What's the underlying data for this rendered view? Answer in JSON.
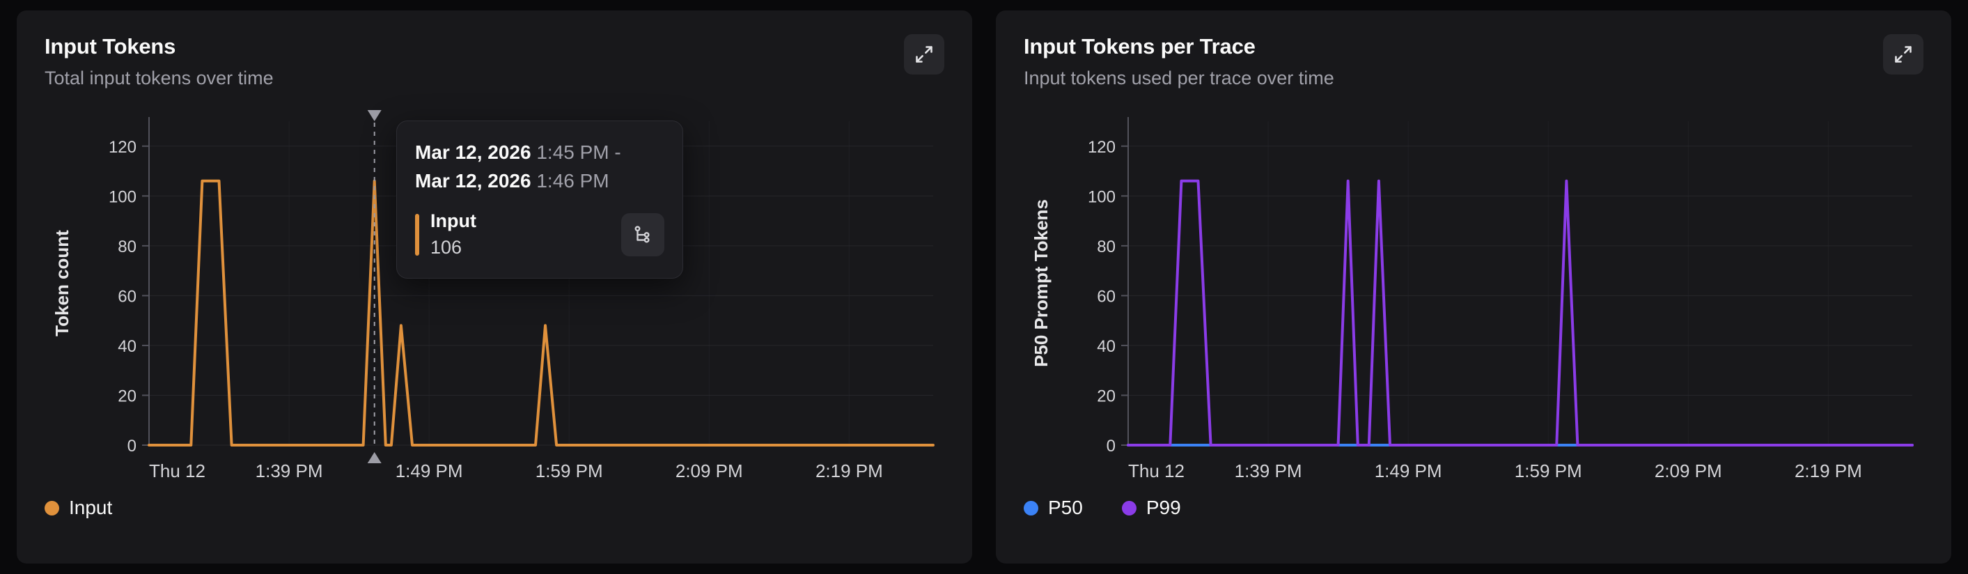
{
  "cards": [
    {
      "title": "Input Tokens",
      "subtitle": "Total input tokens over time"
    },
    {
      "title": "Input Tokens per Trace",
      "subtitle": "Input tokens used per trace over time"
    }
  ],
  "tooltip": {
    "date_start": "Mar 12, 2026",
    "time_start": "1:45 PM",
    "separator": "-",
    "date_end": "Mar 12, 2026",
    "time_end": "1:46 PM",
    "series_label": "Input",
    "value": "106",
    "bar_color": "#E0913C"
  },
  "chart_data": [
    {
      "type": "line",
      "title": "Input Tokens",
      "ylabel": "Token count",
      "xlim": [
        0,
        56
      ],
      "ylim": [
        0,
        130
      ],
      "yticks": [
        0,
        20,
        40,
        60,
        80,
        100,
        120
      ],
      "xticks": [
        {
          "x": 0,
          "label": "Thu 12"
        },
        {
          "x": 10,
          "label": "1:39 PM"
        },
        {
          "x": 20,
          "label": "1:49 PM"
        },
        {
          "x": 30,
          "label": "1:59 PM"
        },
        {
          "x": 40,
          "label": "2:09 PM"
        },
        {
          "x": 50,
          "label": "2:19 PM"
        }
      ],
      "x_unit": "minutes after 1:29 PM, Thu Mar 12 2026",
      "grid": true,
      "legend_position": "bottom-left",
      "series": [
        {
          "name": "Input",
          "color": "#E0913C",
          "points": [
            [
              0,
              0
            ],
            [
              3,
              0
            ],
            [
              3.8,
              106
            ],
            [
              5,
              106
            ],
            [
              5.9,
              0
            ],
            [
              15.3,
              0
            ],
            [
              16.1,
              106
            ],
            [
              16.9,
              0
            ],
            [
              17.3,
              0
            ],
            [
              18,
              48
            ],
            [
              18.8,
              0
            ],
            [
              27.6,
              0
            ],
            [
              28.3,
              48
            ],
            [
              29.1,
              0
            ],
            [
              56,
              0
            ]
          ]
        }
      ],
      "legend": [
        {
          "label": "Input",
          "color": "#E0913C"
        }
      ],
      "cursor": {
        "x": 16.1,
        "value": 106
      }
    },
    {
      "type": "line",
      "title": "Input Tokens per Trace",
      "ylabel": "P50 Prompt Tokens",
      "xlim": [
        0,
        56
      ],
      "ylim": [
        0,
        130
      ],
      "yticks": [
        0,
        20,
        40,
        60,
        80,
        100,
        120
      ],
      "xticks": [
        {
          "x": 0,
          "label": "Thu 12"
        },
        {
          "x": 10,
          "label": "1:39 PM"
        },
        {
          "x": 20,
          "label": "1:49 PM"
        },
        {
          "x": 30,
          "label": "1:59 PM"
        },
        {
          "x": 40,
          "label": "2:09 PM"
        },
        {
          "x": 50,
          "label": "2:19 PM"
        }
      ],
      "x_unit": "minutes after 1:29 PM, Thu Mar 12 2026",
      "grid": true,
      "legend_position": "bottom-left",
      "series": [
        {
          "name": "P50",
          "color": "#3B82F6",
          "points": [
            [
              0,
              0
            ],
            [
              56,
              0
            ]
          ]
        },
        {
          "name": "P99",
          "color": "#8B3CE8",
          "points": [
            [
              0,
              0
            ],
            [
              3,
              0
            ],
            [
              3.8,
              106
            ],
            [
              5,
              106
            ],
            [
              5.9,
              0
            ],
            [
              15,
              0
            ],
            [
              15.7,
              106
            ],
            [
              16.4,
              0
            ],
            [
              17.2,
              0
            ],
            [
              17.9,
              106
            ],
            [
              18.7,
              0
            ],
            [
              30.6,
              0
            ],
            [
              31.3,
              106
            ],
            [
              32.1,
              0
            ],
            [
              56,
              0
            ]
          ]
        }
      ],
      "legend": [
        {
          "label": "P50",
          "color": "#3B82F6"
        },
        {
          "label": "P99",
          "color": "#8B3CE8"
        }
      ]
    }
  ]
}
